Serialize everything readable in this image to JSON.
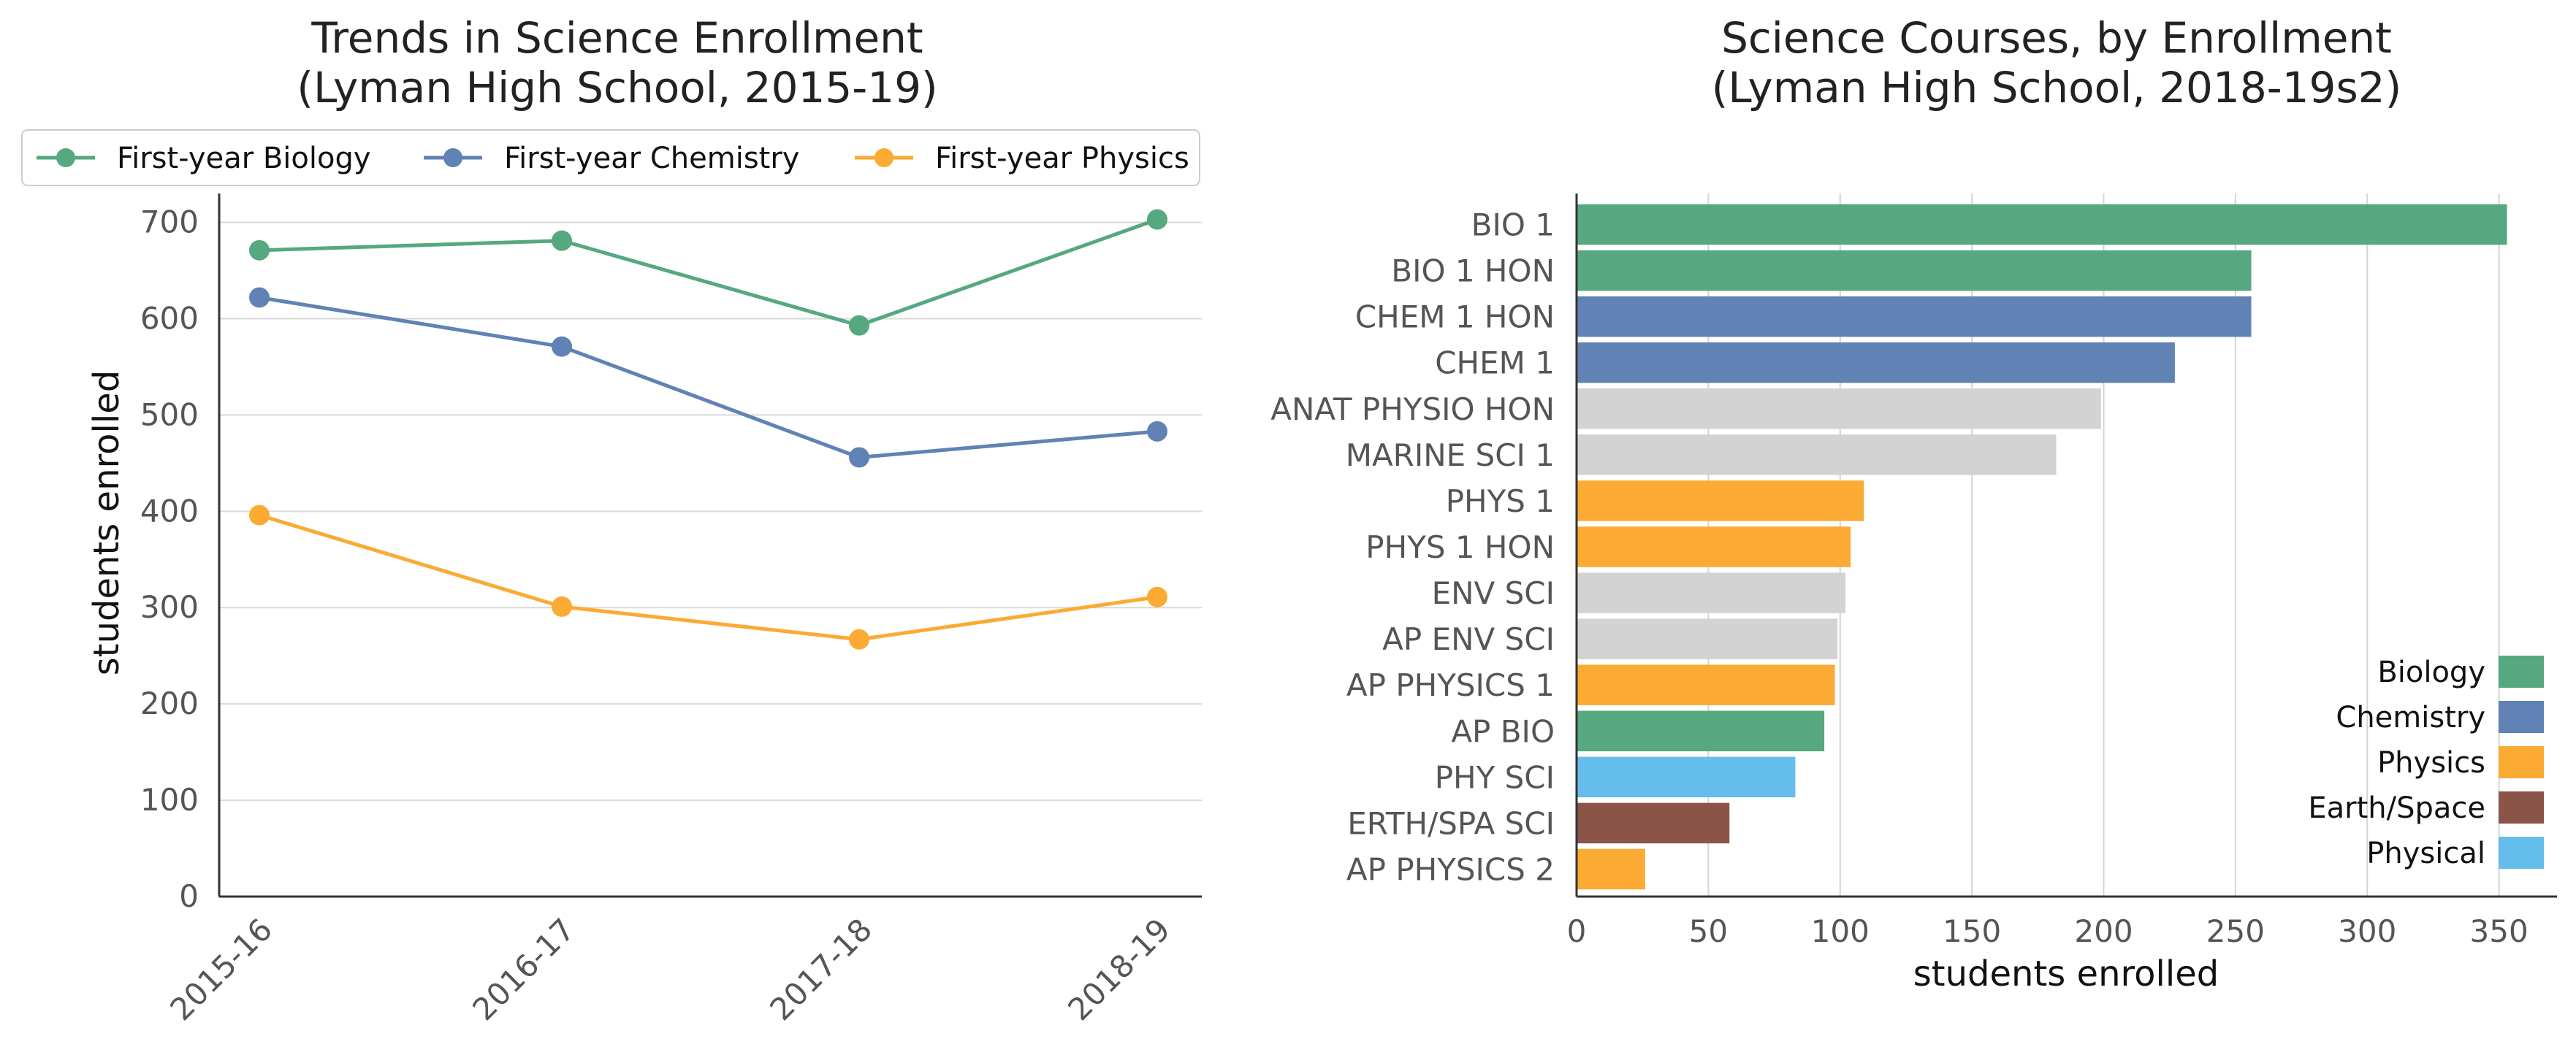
{
  "chart_data": [
    {
      "type": "line",
      "title": "Trends in Science Enrollment",
      "subtitle": "(Lyman High School, 2015-19)",
      "xlabel": "",
      "ylabel": "students enrolled",
      "categories": [
        "2015-16",
        "2016-17",
        "2017-18",
        "2018-19"
      ],
      "ylim": [
        0,
        730
      ],
      "yticks": [
        0,
        100,
        200,
        300,
        400,
        500,
        600,
        700
      ],
      "grid": "horizontal",
      "legend_position": "top",
      "series": [
        {
          "name": "First-year Biology",
          "color": "#55a880",
          "values": [
            671,
            681,
            593,
            703
          ]
        },
        {
          "name": "First-year Chemistry",
          "color": "#6082b4",
          "values": [
            622,
            571,
            456,
            483
          ]
        },
        {
          "name": "First-year Physics",
          "color": "#fbaa33",
          "values": [
            396,
            301,
            267,
            311
          ]
        }
      ]
    },
    {
      "type": "bar",
      "orientation": "horizontal",
      "title": "Science Courses, by Enrollment",
      "subtitle": "(Lyman High School, 2018-19s2)",
      "xlabel": "students enrolled",
      "ylabel": "",
      "xlim": [
        0,
        372
      ],
      "xticks": [
        0,
        50,
        100,
        150,
        200,
        250,
        300,
        350
      ],
      "grid": "vertical",
      "legend_position": "lower-right",
      "legend": [
        {
          "name": "Biology",
          "color": "#55a880"
        },
        {
          "name": "Chemistry",
          "color": "#6082b4"
        },
        {
          "name": "Physics",
          "color": "#fbaa33"
        },
        {
          "name": "Earth/Space",
          "color": "#8c5448"
        },
        {
          "name": "Physical",
          "color": "#64bdeb"
        }
      ],
      "other_color": "#d3d3d3",
      "bars": [
        {
          "label": "BIO 1",
          "value": 353,
          "color": "#55a880"
        },
        {
          "label": "BIO 1 HON",
          "value": 256,
          "color": "#55a880"
        },
        {
          "label": "CHEM 1 HON",
          "value": 256,
          "color": "#6082b4"
        },
        {
          "label": "CHEM 1",
          "value": 227,
          "color": "#6082b4"
        },
        {
          "label": "ANAT PHYSIO HON",
          "value": 199,
          "color": "#d3d3d3"
        },
        {
          "label": "MARINE SCI 1",
          "value": 182,
          "color": "#d3d3d3"
        },
        {
          "label": "PHYS 1",
          "value": 109,
          "color": "#fbaa33"
        },
        {
          "label": "PHYS 1 HON",
          "value": 104,
          "color": "#fbaa33"
        },
        {
          "label": "ENV SCI",
          "value": 102,
          "color": "#d3d3d3"
        },
        {
          "label": "AP ENV SCI",
          "value": 99,
          "color": "#d3d3d3"
        },
        {
          "label": "AP PHYSICS 1",
          "value": 98,
          "color": "#fbaa33"
        },
        {
          "label": "AP BIO",
          "value": 94,
          "color": "#55a880"
        },
        {
          "label": "PHY SCI",
          "value": 83,
          "color": "#64bdeb"
        },
        {
          "label": "ERTH/SPA SCI",
          "value": 58,
          "color": "#8c5448"
        },
        {
          "label": "AP PHYSICS 2",
          "value": 26,
          "color": "#fbaa33"
        }
      ]
    }
  ]
}
